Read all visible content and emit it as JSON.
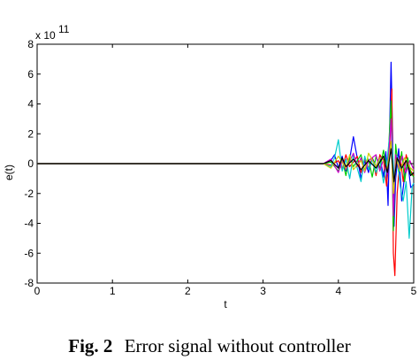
{
  "chart_data": {
    "type": "line",
    "title": "",
    "xlabel": "t",
    "ylabel": "e(t)",
    "y_exponent_label": "x 10",
    "y_exponent_power": "11",
    "xlim": [
      0,
      5
    ],
    "ylim": [
      -8,
      8
    ],
    "xticks": [
      "0",
      "1",
      "2",
      "3",
      "4",
      "5"
    ],
    "yticks": [
      "-8",
      "-6",
      "-4",
      "-2",
      "0",
      "2",
      "4",
      "6",
      "8"
    ],
    "grid": false,
    "series": [
      {
        "color": "#0000ff",
        "x": [
          0,
          3.8,
          3.9,
          3.95,
          4.0,
          4.05,
          4.1,
          4.15,
          4.2,
          4.25,
          4.3,
          4.35,
          4.4,
          4.45,
          4.5,
          4.55,
          4.6,
          4.63,
          4.66,
          4.7,
          4.72,
          4.74,
          4.76,
          4.8,
          4.84,
          4.88,
          4.92,
          4.96,
          5.0
        ],
        "y": [
          0,
          0,
          0.2,
          0.6,
          -0.3,
          0.5,
          -0.5,
          0.3,
          1.8,
          0.4,
          -1.0,
          0.2,
          -0.6,
          0.4,
          -0.2,
          0.5,
          -0.9,
          0.8,
          -2.8,
          6.8,
          2.0,
          -4.2,
          -1.0,
          1.0,
          -2.5,
          -0.8,
          0.2,
          -1.6,
          -1.4
        ]
      },
      {
        "color": "#ff0000",
        "x": [
          0,
          3.8,
          3.9,
          4.0,
          4.05,
          4.1,
          4.15,
          4.2,
          4.25,
          4.3,
          4.35,
          4.4,
          4.45,
          4.5,
          4.55,
          4.6,
          4.64,
          4.68,
          4.71,
          4.73,
          4.75,
          4.78,
          4.82,
          4.86,
          4.9,
          4.95,
          5.0
        ],
        "y": [
          0,
          0,
          -0.1,
          0.2,
          -0.4,
          0.6,
          -0.2,
          0.1,
          0.5,
          -0.6,
          0.3,
          -0.3,
          0.4,
          -0.8,
          0.6,
          0.2,
          -1.5,
          0.8,
          5.0,
          -6.0,
          -7.5,
          -2.0,
          0.5,
          -1.2,
          0.6,
          -0.4,
          -0.8
        ]
      },
      {
        "color": "#00cc00",
        "x": [
          0,
          3.8,
          3.9,
          4.0,
          4.05,
          4.1,
          4.15,
          4.2,
          4.3,
          4.35,
          4.4,
          4.45,
          4.5,
          4.55,
          4.6,
          4.65,
          4.7,
          4.73,
          4.76,
          4.8,
          4.84,
          4.88,
          4.92,
          4.96,
          5.0
        ],
        "y": [
          0,
          0,
          0.1,
          -0.5,
          0.3,
          -0.8,
          0.4,
          -0.2,
          0.6,
          -0.5,
          0.3,
          -0.9,
          0.5,
          -0.3,
          0.9,
          -0.6,
          4.2,
          -4.5,
          1.3,
          -0.6,
          0.8,
          -1.2,
          0.4,
          -0.6,
          -0.9
        ]
      },
      {
        "color": "#00cccc",
        "x": [
          0,
          3.8,
          3.9,
          3.95,
          4.0,
          4.05,
          4.1,
          4.15,
          4.2,
          4.25,
          4.3,
          4.35,
          4.4,
          4.45,
          4.5,
          4.55,
          4.6,
          4.65,
          4.7,
          4.74,
          4.78,
          4.82,
          4.86,
          4.9,
          4.94,
          4.98,
          5.0
        ],
        "y": [
          0,
          0,
          -0.2,
          0.4,
          1.6,
          -0.5,
          0.3,
          -1.0,
          0.6,
          -0.3,
          -1.2,
          0.5,
          -0.4,
          0.3,
          -0.6,
          0.2,
          -1.3,
          0.4,
          2.8,
          -1.0,
          0.5,
          -1.5,
          -2.5,
          -1.2,
          -5.0,
          -1.5,
          -1.3
        ]
      },
      {
        "color": "#cc00cc",
        "x": [
          0,
          3.8,
          3.9,
          4.0,
          4.05,
          4.1,
          4.2,
          4.25,
          4.3,
          4.35,
          4.4,
          4.5,
          4.55,
          4.6,
          4.65,
          4.7,
          4.73,
          4.76,
          4.8,
          4.85,
          4.9,
          4.95,
          5.0
        ],
        "y": [
          0,
          0,
          0.3,
          -0.6,
          0.2,
          -0.4,
          0.7,
          -0.2,
          0.4,
          -0.6,
          0.2,
          0.6,
          -0.5,
          0.3,
          -0.7,
          3.0,
          -3.5,
          0.6,
          -0.3,
          0.5,
          -0.6,
          0.2,
          -0.4
        ]
      },
      {
        "color": "#cccc00",
        "x": [
          0,
          3.8,
          3.9,
          4.0,
          4.1,
          4.15,
          4.2,
          4.3,
          4.35,
          4.4,
          4.5,
          4.55,
          4.6,
          4.65,
          4.7,
          4.73,
          4.77,
          4.82,
          4.88,
          4.94,
          5.0
        ],
        "y": [
          0,
          0,
          -0.3,
          0.5,
          -0.3,
          0.6,
          -0.4,
          0.2,
          -0.5,
          0.7,
          -0.2,
          0.4,
          0.2,
          -0.4,
          1.5,
          -2.0,
          0.3,
          -0.5,
          0.4,
          -0.2,
          -0.5
        ]
      },
      {
        "color": "#000000",
        "x": [
          0,
          3.8,
          3.9,
          4.0,
          4.05,
          4.1,
          4.2,
          4.3,
          4.4,
          4.5,
          4.6,
          4.65,
          4.7,
          4.74,
          4.78,
          4.84,
          4.9,
          4.96,
          5.0
        ],
        "y": [
          0,
          0,
          0.2,
          -0.3,
          0.4,
          -0.2,
          0.3,
          -0.4,
          0.2,
          -0.3,
          0.5,
          -0.6,
          1.0,
          -1.2,
          0.4,
          -0.3,
          0.2,
          -0.8,
          -0.6
        ]
      }
    ]
  },
  "caption": {
    "label": "Fig. 2",
    "text": "Error signal without controller"
  }
}
